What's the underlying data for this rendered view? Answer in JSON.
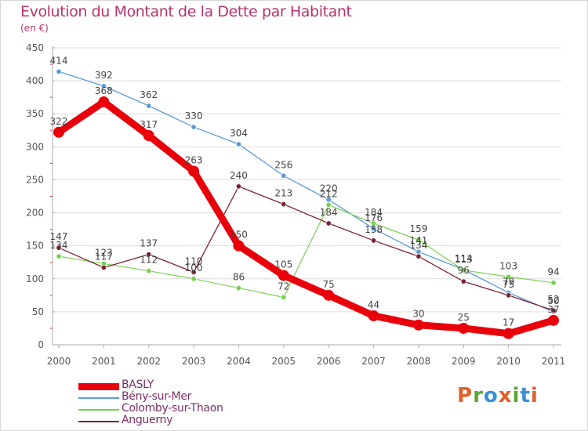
{
  "title": "Evolution du Montant de la Dette par Habitant",
  "unit": "(en €)",
  "logo_text": "Proxiti",
  "colors": {
    "title": "#b5346e",
    "grid": "#dddddd",
    "axis_text": "#555555",
    "logo": [
      "#e0602a",
      "#5aa832",
      "#3b8fd8",
      "#e0602a",
      "#5aa832",
      "#3b8fd8",
      "#e0602a"
    ]
  },
  "chart_data": {
    "type": "line",
    "title": "Evolution du Montant de la Dette par Habitant",
    "ylabel": "(en €)",
    "xlabel": "",
    "ylim": [
      0,
      450
    ],
    "yticks": [
      0,
      50,
      100,
      150,
      200,
      250,
      300,
      350,
      400,
      450
    ],
    "x": [
      "2000",
      "2001",
      "2002",
      "2003",
      "2004",
      "2005",
      "2006",
      "2007",
      "2008",
      "2009",
      "2010",
      "2011"
    ],
    "grid": "horizontal",
    "legend_position": "bottom-left",
    "series": [
      {
        "name": "BASLY",
        "color": "#e8000a",
        "values": [
          322,
          368,
          317,
          263,
          150,
          105,
          75,
          44,
          30,
          25,
          17,
          37
        ]
      },
      {
        "name": "Bény-sur-Mer",
        "color": "#5b9bd5",
        "values": [
          414,
          392,
          362,
          330,
          304,
          256,
          220,
          176,
          141,
          114,
          79,
          50
        ]
      },
      {
        "name": "Colomby-sur-Thaon",
        "color": "#79d050",
        "values": [
          134,
          123,
          112,
          100,
          86,
          72,
          212,
          184,
          159,
          113,
          103,
          94
        ]
      },
      {
        "name": "Anguerny",
        "color": "#7b2231",
        "values": [
          147,
          117,
          137,
          110,
          240,
          213,
          184,
          158,
          134,
          96,
          75,
          52
        ]
      }
    ]
  }
}
